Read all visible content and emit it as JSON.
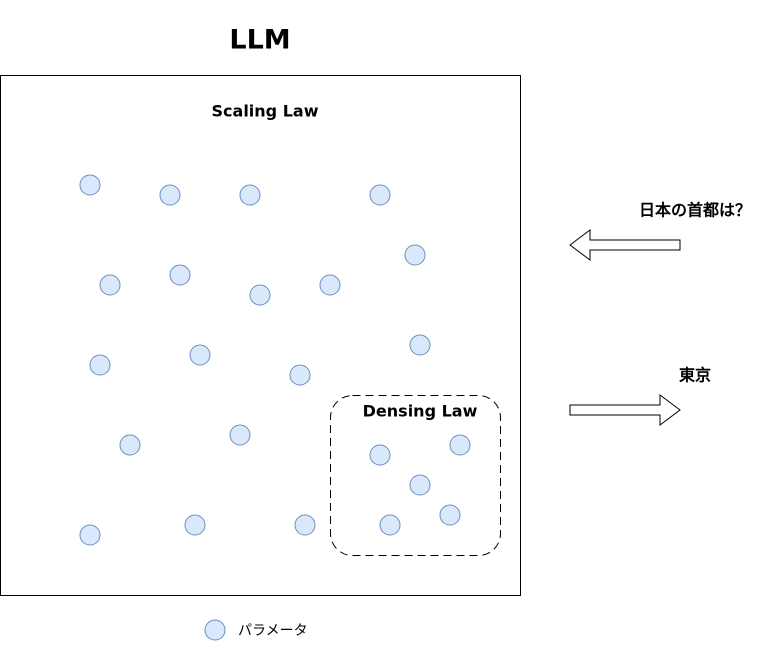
{
  "title": "LLM",
  "diagram": {
    "outer_label": "Scaling Law",
    "inner_label": "Densing Law"
  },
  "input": "日本の首都は？",
  "output": "東京",
  "legend": {
    "label": "パラメータ"
  }
}
